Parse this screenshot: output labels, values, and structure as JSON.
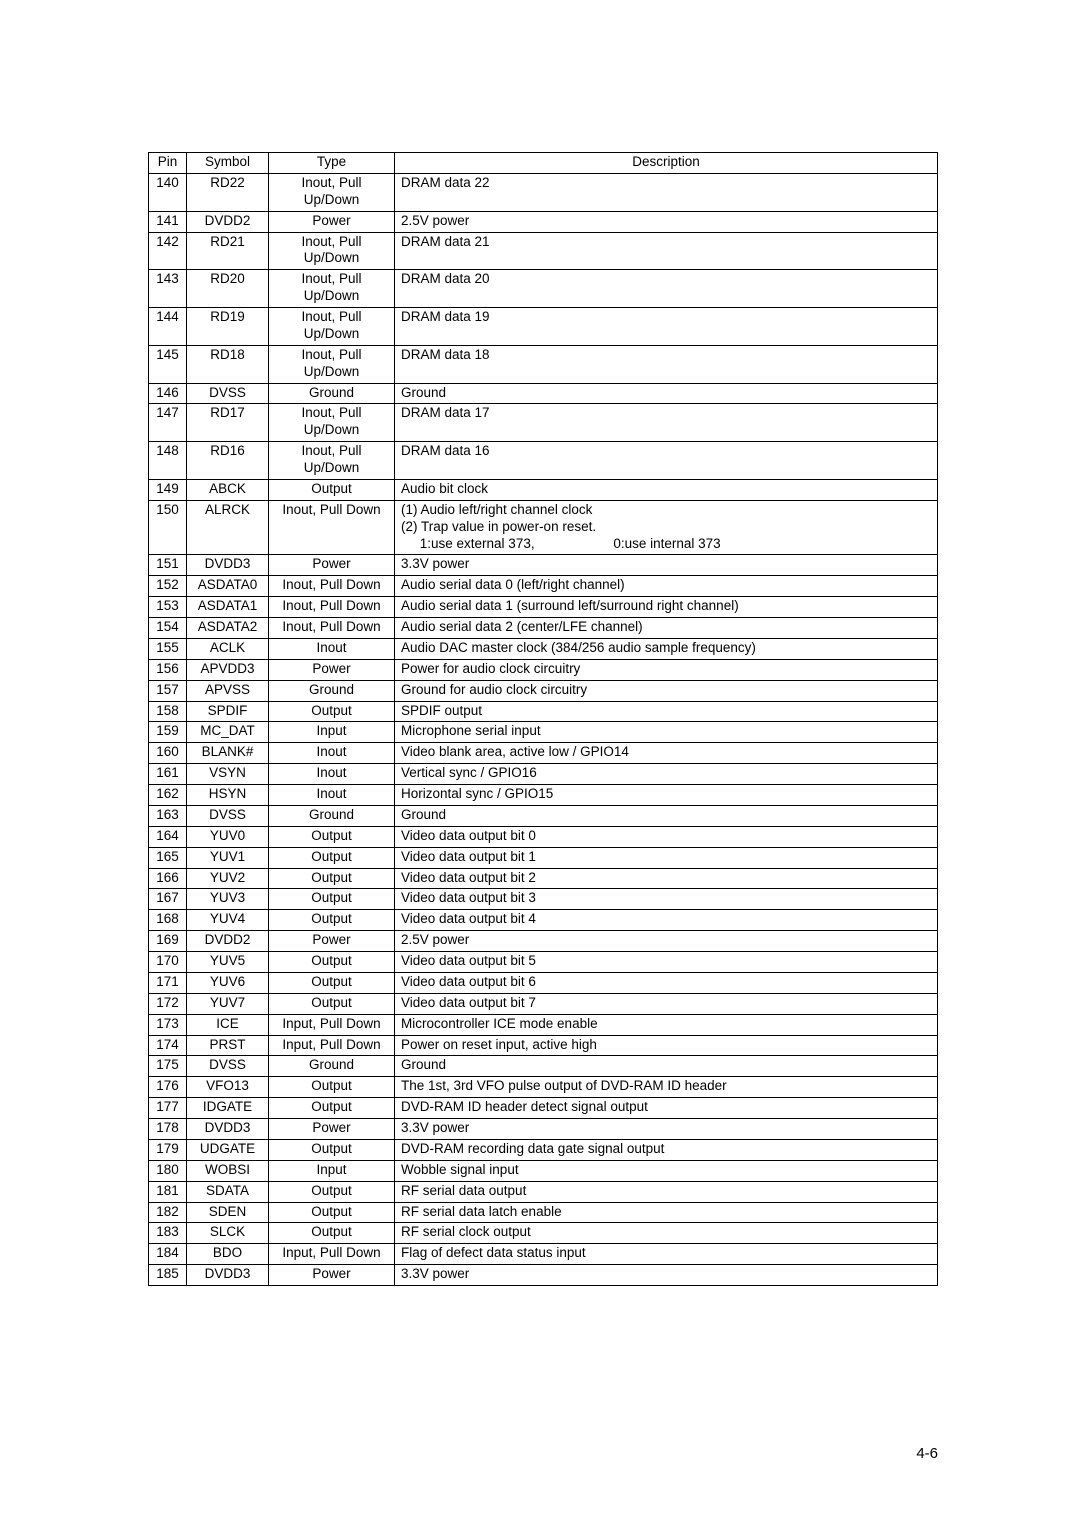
{
  "table": {
    "headers": [
      "Pin",
      "Symbol",
      "Type",
      "Description"
    ],
    "col_align": [
      "c",
      "c",
      "c",
      "l"
    ],
    "rows": [
      [
        "140",
        "RD22",
        "Inout, Pull Up/Down",
        "DRAM data 22"
      ],
      [
        "141",
        "DVDD2",
        "Power",
        "2.5V power"
      ],
      [
        "142",
        "RD21",
        "Inout, Pull Up/Down",
        "DRAM data 21"
      ],
      [
        "143",
        "RD20",
        "Inout, Pull Up/Down",
        "DRAM data 20"
      ],
      [
        "144",
        "RD19",
        "Inout, Pull Up/Down",
        "DRAM data 19"
      ],
      [
        "145",
        "RD18",
        "Inout, Pull Up/Down",
        "DRAM data 18"
      ],
      [
        "146",
        "DVSS",
        "Ground",
        "Ground"
      ],
      [
        "147",
        "RD17",
        "Inout, Pull Up/Down",
        "DRAM data 17"
      ],
      [
        "148",
        "RD16",
        "Inout, Pull Up/Down",
        "DRAM data 16"
      ],
      [
        "149",
        "ABCK",
        "Output",
        "Audio bit clock"
      ],
      [
        "150",
        "ALRCK",
        "Inout, Pull Down",
        "(1) Audio left/right channel clock\n(2) Trap value in power-on reset.\n     1:use external 373,                     0:use internal 373"
      ],
      [
        "151",
        "DVDD3",
        "Power",
        "3.3V power"
      ],
      [
        "152",
        "ASDATA0",
        "Inout, Pull Down",
        "Audio serial data 0 (left/right channel)"
      ],
      [
        "153",
        "ASDATA1",
        "Inout, Pull Down",
        "Audio serial data 1 (surround left/surround right channel)"
      ],
      [
        "154",
        "ASDATA2",
        "Inout, Pull Down",
        "Audio serial data 2 (center/LFE channel)"
      ],
      [
        "155",
        "ACLK",
        "Inout",
        "Audio DAC master clock (384/256 audio sample frequency)"
      ],
      [
        "156",
        "APVDD3",
        "Power",
        "Power for audio clock circuitry"
      ],
      [
        "157",
        "APVSS",
        "Ground",
        "Ground for audio clock circuitry"
      ],
      [
        "158",
        "SPDIF",
        "Output",
        "SPDIF output"
      ],
      [
        "159",
        "MC_DAT",
        "Input",
        "Microphone serial input"
      ],
      [
        "160",
        "BLANK#",
        "Inout",
        "Video blank area, active low / GPIO14"
      ],
      [
        "161",
        "VSYN",
        "Inout",
        "Vertical sync / GPIO16"
      ],
      [
        "162",
        "HSYN",
        "Inout",
        "Horizontal sync / GPIO15"
      ],
      [
        "163",
        "DVSS",
        "Ground",
        "Ground"
      ],
      [
        "164",
        "YUV0",
        "Output",
        "Video data output bit 0"
      ],
      [
        "165",
        "YUV1",
        "Output",
        "Video data output bit 1"
      ],
      [
        "166",
        "YUV2",
        "Output",
        "Video data output bit 2"
      ],
      [
        "167",
        "YUV3",
        "Output",
        "Video data output bit 3"
      ],
      [
        "168",
        "YUV4",
        "Output",
        "Video data output bit 4"
      ],
      [
        "169",
        "DVDD2",
        "Power",
        "2.5V power"
      ],
      [
        "170",
        "YUV5",
        "Output",
        "Video data output bit 5"
      ],
      [
        "171",
        "YUV6",
        "Output",
        "Video data output bit 6"
      ],
      [
        "172",
        "YUV7",
        "Output",
        "Video data output bit 7"
      ],
      [
        "173",
        "ICE",
        "Input, Pull Down",
        "Microcontroller ICE mode enable"
      ],
      [
        "174",
        "PRST",
        "Input, Pull Down",
        "Power on reset input, active high"
      ],
      [
        "175",
        "DVSS",
        "Ground",
        "Ground"
      ],
      [
        "176",
        "VFO13",
        "Output",
        "The 1st, 3rd VFO pulse output of DVD-RAM ID header"
      ],
      [
        "177",
        "IDGATE",
        "Output",
        "DVD-RAM ID header detect signal output"
      ],
      [
        "178",
        "DVDD3",
        "Power",
        "3.3V power"
      ],
      [
        "179",
        "UDGATE",
        "Output",
        "DVD-RAM recording data gate signal output"
      ],
      [
        "180",
        "WOBSI",
        "Input",
        "Wobble signal input"
      ],
      [
        "181",
        "SDATA",
        "Output",
        "RF serial data output"
      ],
      [
        "182",
        "SDEN",
        "Output",
        "RF serial data latch enable"
      ],
      [
        "183",
        "SLCK",
        "Output",
        "RF serial clock output"
      ],
      [
        "184",
        "BDO",
        "Input, Pull Down",
        "Flag of defect data status input"
      ],
      [
        "185",
        "DVDD3",
        "Power",
        "3.3V power"
      ]
    ]
  },
  "footer": "4-6"
}
